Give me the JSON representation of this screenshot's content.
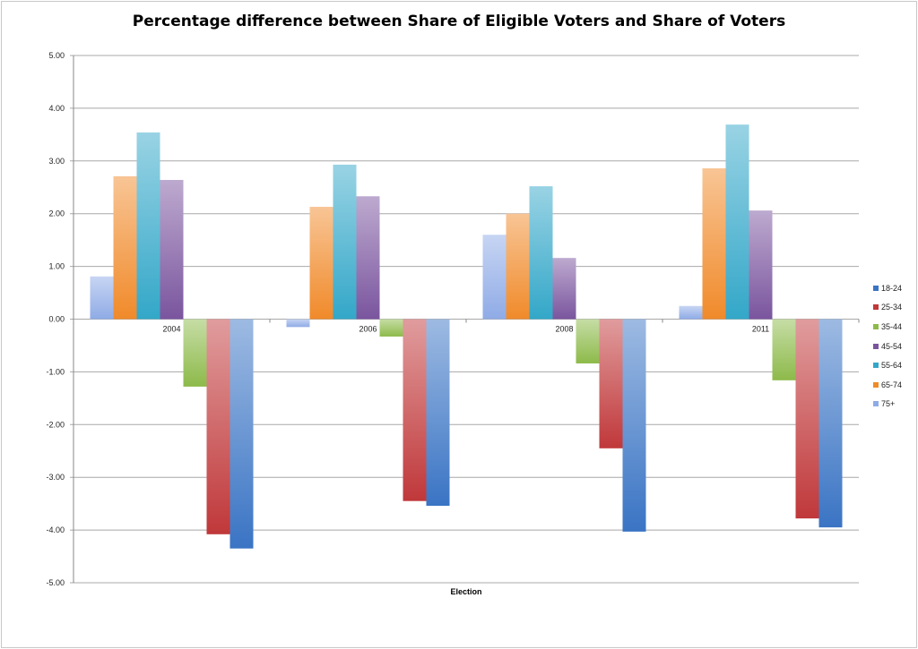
{
  "chart_data": {
    "type": "bar",
    "title": "Percentage difference between Share of Eligible Voters and Share of Voters",
    "xlabel": "Election",
    "ylabel": "",
    "ylim": [
      -5,
      5
    ],
    "yticks": [
      "5.00",
      "4.00",
      "3.00",
      "2.00",
      "1.00",
      "0.00",
      "-1.00",
      "-2.00",
      "-3.00",
      "-4.00",
      "-5.00"
    ],
    "grid": true,
    "legend_position": "right",
    "categories": [
      "2004",
      "2006",
      "2008",
      "2011"
    ],
    "series": [
      {
        "name": "18-24",
        "color": "#3a74c4",
        "values": [
          -4.35,
          -3.54,
          -4.03,
          -3.95
        ]
      },
      {
        "name": "25-34",
        "color": "#c0383a",
        "values": [
          -4.08,
          -3.45,
          -2.45,
          -3.78
        ]
      },
      {
        "name": "35-44",
        "color": "#8dba4a",
        "values": [
          -1.28,
          -0.33,
          -0.84,
          -1.16
        ]
      },
      {
        "name": "45-54",
        "color": "#7a559e",
        "values": [
          2.64,
          2.33,
          1.16,
          2.06
        ]
      },
      {
        "name": "55-64",
        "color": "#33a7c8",
        "values": [
          3.54,
          2.93,
          2.52,
          3.69
        ]
      },
      {
        "name": "65-74",
        "color": "#f08a2a",
        "values": [
          2.71,
          2.13,
          2.0,
          2.86
        ]
      },
      {
        "name": "75+",
        "color": "#8fabe6",
        "values": [
          0.81,
          -0.15,
          1.6,
          0.25
        ]
      }
    ]
  }
}
